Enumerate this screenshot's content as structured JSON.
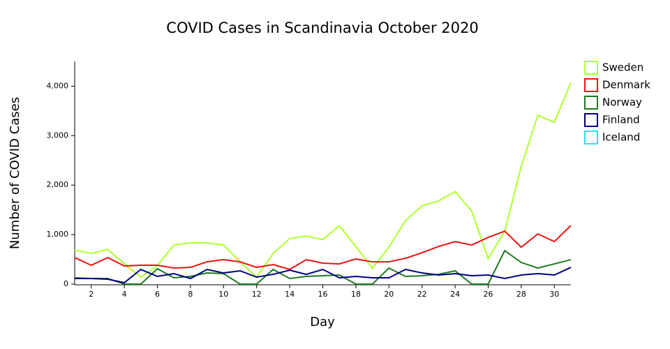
{
  "chart_data": {
    "type": "line",
    "title": "COVID Cases in Scandinavia October 2020",
    "x_label": "Day",
    "y_label": "Number of COVID Cases",
    "x": [
      1,
      2,
      3,
      4,
      5,
      6,
      7,
      8,
      9,
      10,
      11,
      12,
      13,
      14,
      15,
      16,
      17,
      18,
      19,
      20,
      21,
      22,
      23,
      24,
      25,
      26,
      27,
      28,
      29,
      30,
      31
    ],
    "xlim": [
      1,
      31
    ],
    "xticks": [
      2,
      4,
      6,
      8,
      10,
      12,
      14,
      16,
      18,
      20,
      22,
      24,
      26,
      28,
      30
    ],
    "ylim": [
      0,
      4500
    ],
    "yticks": [
      0,
      {
        "value": 1000,
        "label": "1,000"
      },
      {
        "value": 2000,
        "label": "2,000"
      },
      {
        "value": 3000,
        "label": "3,000"
      },
      {
        "value": 4000,
        "label": "4,000"
      }
    ],
    "series": [
      {
        "name": "Sweden",
        "color": "#adff2f",
        "values": [
          690,
          620,
          700,
          410,
          140,
          370,
          790,
          830,
          830,
          790,
          450,
          140,
          620,
          920,
          970,
          900,
          1180,
          760,
          320,
          750,
          1280,
          1580,
          1680,
          1870,
          1480,
          510,
          1070,
          2380,
          3410,
          3270,
          4070
        ]
      },
      {
        "name": "Denmark",
        "color": "#ee1111",
        "values": [
          535,
          380,
          535,
          366,
          380,
          380,
          324,
          338,
          450,
          493,
          450,
          338,
          394,
          296,
          493,
          423,
          408,
          507,
          450,
          450,
          521,
          634,
          760,
          859,
          789,
          944,
          1070,
          746,
          1014,
          859,
          1183
        ]
      },
      {
        "name": "Norway",
        "color": "#1e7a1e",
        "values": [
          127,
          113,
          113,
          0,
          0,
          310,
          127,
          155,
          225,
          211,
          0,
          0,
          296,
          113,
          155,
          169,
          183,
          0,
          0,
          324,
          155,
          169,
          197,
          268,
          0,
          0,
          676,
          437,
          324,
          408,
          493
        ]
      },
      {
        "name": "Finland",
        "color": "#000080",
        "values": [
          113,
          113,
          99,
          28,
          296,
          155,
          211,
          113,
          296,
          225,
          268,
          141,
          197,
          282,
          197,
          296,
          127,
          155,
          127,
          127,
          296,
          225,
          183,
          211,
          169,
          183,
          113,
          183,
          211,
          183,
          338
        ]
      },
      {
        "name": "Iceland",
        "color": "#22e5ee",
        "values": [
          null,
          null,
          null,
          null,
          null,
          null,
          null,
          null,
          null,
          null,
          null,
          null,
          null,
          null,
          null,
          null,
          null,
          null,
          null,
          null,
          null,
          null,
          null,
          null,
          null,
          null,
          null,
          null,
          null,
          null,
          null
        ]
      }
    ],
    "legend": "top-right"
  }
}
